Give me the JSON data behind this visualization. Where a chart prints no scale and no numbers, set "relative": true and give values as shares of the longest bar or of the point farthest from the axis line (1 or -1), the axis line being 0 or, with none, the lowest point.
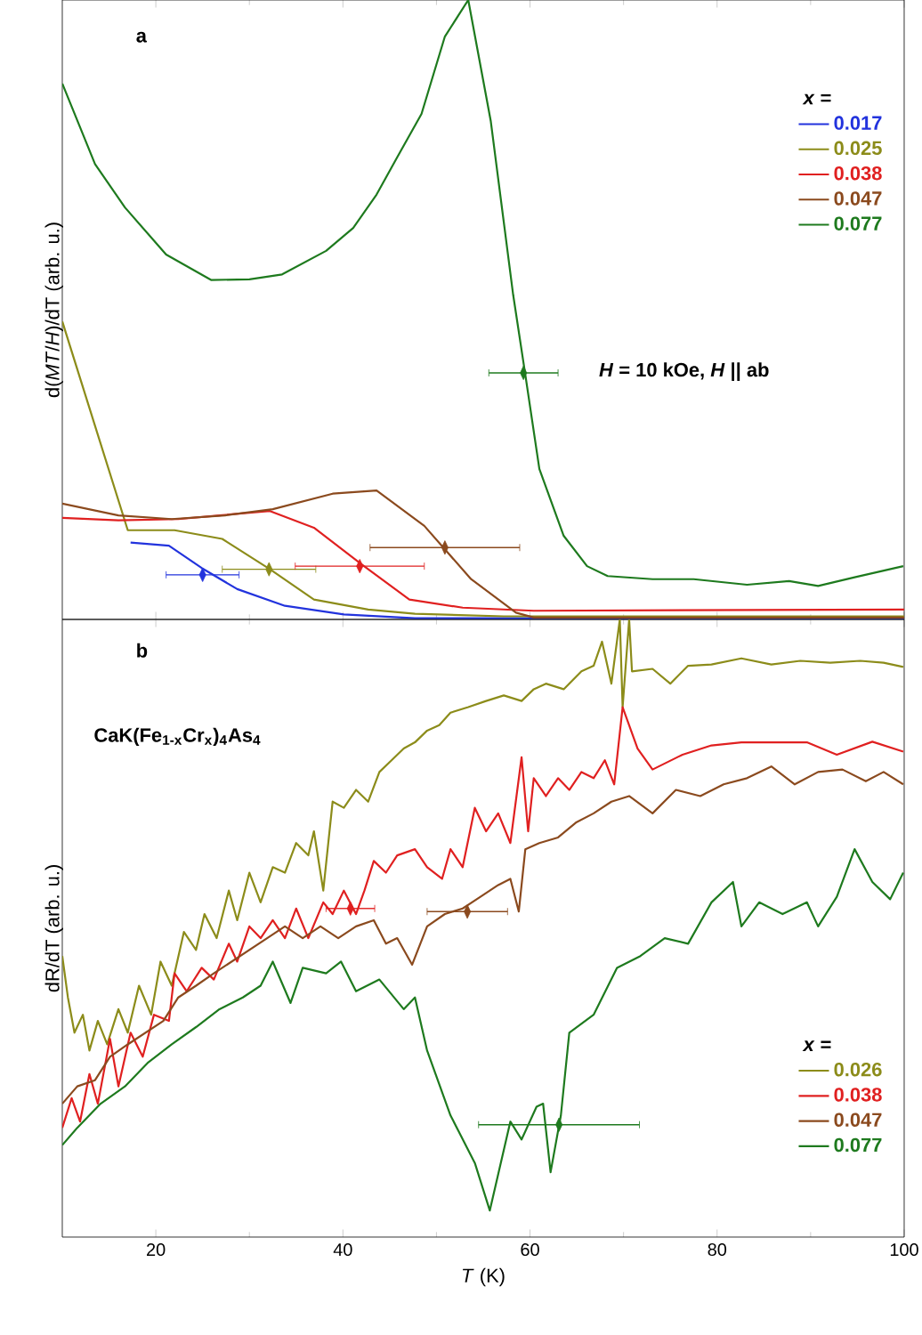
{
  "chart_data": [
    {
      "type": "line",
      "relative": true,
      "ylabel": "d(*MT*/*H*)/dT (arb. u.)",
      "legend_title": "*x* =",
      "legend": "top right",
      "tick_labels": false,
      "xlim": [
        10,
        100
      ],
      "xticks": [
        20,
        40,
        60,
        80,
        100
      ],
      "annotations": [
        "a",
        "*H* = 10 kOe, *H* || ab"
      ],
      "series": [
        {
          "name": "0.017",
          "color": "#2233dd",
          "x": [
            17.3,
            21.4,
            24.9,
            28.7,
            33.8,
            40.1,
            47.7,
            100
          ],
          "values": [
            0.124,
            0.119,
            0.083,
            0.049,
            0.022,
            0.008,
            0.002,
            0.002
          ]
        },
        {
          "name": "0.025",
          "color": "#8c8c1a",
          "x": [
            10,
            17,
            22,
            27.1,
            32.2,
            36.9,
            42.7,
            47.7,
            57.2,
            70.6,
            100
          ],
          "values": [
            0.481,
            0.144,
            0.144,
            0.13,
            0.081,
            0.032,
            0.016,
            0.009,
            0.005,
            0.005,
            0.005
          ]
        },
        {
          "name": "0.038",
          "color": "#e02020",
          "x": [
            10,
            16,
            22.4,
            26.8,
            32.2,
            36.9,
            42,
            47.1,
            52.8,
            60.4,
            100
          ],
          "values": [
            0.164,
            0.16,
            0.162,
            0.168,
            0.175,
            0.148,
            0.089,
            0.032,
            0.019,
            0.014,
            0.016
          ]
        },
        {
          "name": "0.047",
          "color": "#8b4a1e",
          "x": [
            10,
            16,
            21.7,
            27.4,
            32.5,
            38.9,
            43.6,
            48.7,
            53.7,
            58.5,
            60.4,
            100
          ],
          "values": [
            0.187,
            0.168,
            0.162,
            0.168,
            0.178,
            0.203,
            0.208,
            0.151,
            0.065,
            0.011,
            0.003,
            0.003
          ]
        },
        {
          "name": "0.077",
          "color": "#1e7a1e",
          "x": [
            10,
            13.5,
            16.7,
            21.1,
            25.9,
            30,
            33.5,
            38.2,
            41.1,
            43.6,
            45.8,
            48.4,
            50.9,
            53.4,
            55.8,
            58.2,
            59.5,
            61,
            63.6,
            66.1,
            68.3,
            73.1,
            77.5,
            83.2,
            87.7,
            90.8,
            94.7,
            99.9
          ],
          "values": [
            0.865,
            0.735,
            0.665,
            0.589,
            0.548,
            0.549,
            0.557,
            0.595,
            0.632,
            0.686,
            0.746,
            0.816,
            0.941,
            1.0,
            0.805,
            0.524,
            0.395,
            0.243,
            0.135,
            0.086,
            0.07,
            0.065,
            0.065,
            0.056,
            0.062,
            0.054,
            0.068,
            0.086
          ]
        },
        {
          "type": "scatter",
          "marker": "diamond",
          "color": "#2233dd",
          "x": [
            25
          ],
          "values": [
            0.072
          ],
          "xerrors": [
            3.9
          ]
        },
        {
          "type": "scatter",
          "marker": "diamond",
          "color": "#8c8c1a",
          "x": [
            32.1
          ],
          "values": [
            0.081
          ],
          "xerrors": [
            5
          ]
        },
        {
          "type": "scatter",
          "marker": "diamond",
          "color": "#e02020",
          "x": [
            41.8
          ],
          "values": [
            0.086
          ],
          "xerrors": [
            6.9
          ]
        },
        {
          "type": "scatter",
          "marker": "diamond",
          "color": "#8b4a1e",
          "x": [
            50.9
          ],
          "values": [
            0.116
          ],
          "xerrors": [
            8
          ]
        },
        {
          "type": "scatter",
          "marker": "diamond",
          "color": "#1e7a1e",
          "x": [
            59.3
          ],
          "values": [
            0.398
          ],
          "xerrors": [
            3.7
          ]
        }
      ]
    },
    {
      "type": "line",
      "relative": true,
      "ylabel": "dR/dT (arb. u.)",
      "xlabel": "*T* (K)",
      "legend_title": "*x* =",
      "legend": "bottom right",
      "tick_labels": "x",
      "xlim": [
        10,
        100
      ],
      "xticks": [
        20,
        40,
        60,
        80,
        100
      ],
      "annotations": [
        "b",
        "CaK(Fe$_{1-x}$Cr$_{x}$)$_{4}$As$_{4}$"
      ],
      "series": [
        {
          "name": "0.026",
          "color": "#8c8c1a",
          "x": [
            10,
            10.6,
            11.3,
            12.2,
            12.9,
            13.8,
            14.8,
            16,
            17,
            18.2,
            19.5,
            20.5,
            21.7,
            23,
            24.3,
            25.2,
            26.5,
            27.8,
            28.7,
            30,
            31.2,
            32.5,
            33.8,
            35,
            36.3,
            36.9,
            37.9,
            38.9,
            40.1,
            41.4,
            42.7,
            43.9,
            45.2,
            46.5,
            47.7,
            49,
            50.3,
            51.5,
            53.4,
            55.3,
            57.2,
            59.1,
            60.4,
            61.7,
            63.6,
            65.5,
            66.8,
            67.7,
            68.7,
            69.6,
            69.9,
            70.6,
            70.9,
            73.1,
            75,
            76.9,
            79.4,
            82.6,
            85.8,
            88.9,
            92.1,
            95.3,
            97.8,
            99.9
          ],
          "values": [
            0.455,
            0.388,
            0.331,
            0.36,
            0.302,
            0.35,
            0.312,
            0.369,
            0.331,
            0.407,
            0.36,
            0.446,
            0.407,
            0.494,
            0.465,
            0.523,
            0.484,
            0.561,
            0.513,
            0.59,
            0.542,
            0.599,
            0.59,
            0.638,
            0.618,
            0.657,
            0.561,
            0.705,
            0.695,
            0.724,
            0.705,
            0.753,
            0.772,
            0.791,
            0.801,
            0.82,
            0.829,
            0.849,
            0.858,
            0.868,
            0.877,
            0.868,
            0.887,
            0.896,
            0.887,
            0.916,
            0.925,
            0.964,
            0.896,
            1.0,
            0.858,
            1.0,
            0.916,
            0.92,
            0.896,
            0.925,
            0.927,
            0.937,
            0.927,
            0.933,
            0.93,
            0.933,
            0.93,
            0.923
          ]
        },
        {
          "name": "0.038",
          "color": "#e02020",
          "x": [
            10,
            11,
            11.9,
            12.9,
            13.8,
            15.1,
            16,
            17.3,
            18.6,
            19.8,
            21.4,
            22,
            23.3,
            24.9,
            26.2,
            27.8,
            28.7,
            30,
            31.2,
            32.5,
            33.8,
            35,
            36.3,
            37.9,
            38.9,
            40.1,
            41.4,
            42.3,
            43.3,
            44.6,
            45.8,
            47.7,
            49,
            50.6,
            51.5,
            52.8,
            54.1,
            55.3,
            56.6,
            57.9,
            59.1,
            59.8,
            60.4,
            61.7,
            63,
            64.2,
            65.5,
            66.8,
            68,
            69,
            69.9,
            71.5,
            73.1,
            76.3,
            79.4,
            82.6,
            85.8,
            89.6,
            92.8,
            96.6,
            99.9
          ],
          "values": [
            0.177,
            0.225,
            0.187,
            0.264,
            0.216,
            0.321,
            0.244,
            0.331,
            0.292,
            0.36,
            0.35,
            0.427,
            0.398,
            0.436,
            0.417,
            0.475,
            0.446,
            0.503,
            0.484,
            0.513,
            0.484,
            0.532,
            0.484,
            0.542,
            0.523,
            0.561,
            0.523,
            0.561,
            0.609,
            0.59,
            0.618,
            0.628,
            0.599,
            0.58,
            0.628,
            0.599,
            0.695,
            0.657,
            0.686,
            0.638,
            0.777,
            0.657,
            0.743,
            0.714,
            0.743,
            0.724,
            0.753,
            0.743,
            0.772,
            0.733,
            0.858,
            0.791,
            0.757,
            0.781,
            0.796,
            0.801,
            0.801,
            0.801,
            0.781,
            0.802,
            0.786
          ]
        },
        {
          "name": "0.047",
          "color": "#8b4a1e",
          "x": [
            10,
            11.6,
            13.5,
            15.1,
            17,
            18.9,
            20.8,
            22.4,
            24.3,
            26.2,
            28.1,
            30,
            31.9,
            33.8,
            35.7,
            37.6,
            39.5,
            41.4,
            43.3,
            44.6,
            45.8,
            47.4,
            49,
            50.9,
            52.8,
            54.7,
            56.6,
            57.9,
            58.8,
            59.5,
            61,
            63,
            64.9,
            66.8,
            68.7,
            70.6,
            73.1,
            75.6,
            78.2,
            80.7,
            83.2,
            85.8,
            88.3,
            90.8,
            93.4,
            95.9,
            97.8,
            99.9
          ],
          "values": [
            0.216,
            0.244,
            0.254,
            0.292,
            0.312,
            0.331,
            0.35,
            0.388,
            0.407,
            0.427,
            0.446,
            0.465,
            0.484,
            0.503,
            0.484,
            0.503,
            0.484,
            0.503,
            0.513,
            0.475,
            0.484,
            0.441,
            0.503,
            0.523,
            0.532,
            0.551,
            0.57,
            0.58,
            0.527,
            0.628,
            0.638,
            0.647,
            0.671,
            0.686,
            0.705,
            0.714,
            0.686,
            0.724,
            0.714,
            0.733,
            0.743,
            0.762,
            0.733,
            0.753,
            0.757,
            0.738,
            0.753,
            0.733
          ]
        },
        {
          "name": "0.077",
          "color": "#1e7a1e",
          "x": [
            10,
            11.6,
            14.1,
            16.7,
            19.2,
            21.7,
            24.3,
            26.8,
            29.3,
            31.2,
            32.5,
            34.4,
            35.7,
            38.2,
            39.8,
            41.4,
            43.9,
            46.5,
            47.7,
            49,
            51.5,
            54.1,
            55.7,
            57.9,
            59.1,
            60.7,
            61.4,
            62.2,
            63.3,
            64.2,
            66.8,
            69.3,
            71.8,
            74.4,
            76.9,
            79.4,
            81.7,
            82.6,
            84.5,
            87,
            89.6,
            90.8,
            92.8,
            94.7,
            96.6,
            98.5,
            99.9
          ],
          "values": [
            0.149,
            0.177,
            0.216,
            0.244,
            0.283,
            0.312,
            0.34,
            0.369,
            0.388,
            0.407,
            0.446,
            0.379,
            0.436,
            0.427,
            0.446,
            0.398,
            0.417,
            0.369,
            0.388,
            0.302,
            0.197,
            0.12,
            0.043,
            0.187,
            0.158,
            0.211,
            0.216,
            0.105,
            0.197,
            0.331,
            0.36,
            0.436,
            0.455,
            0.484,
            0.475,
            0.542,
            0.575,
            0.503,
            0.542,
            0.523,
            0.542,
            0.503,
            0.551,
            0.628,
            0.575,
            0.547,
            0.59
          ]
        },
        {
          "type": "scatter",
          "marker": "diamond",
          "color": "#e02020",
          "x": [
            40.8
          ],
          "values": [
            0.532
          ],
          "xerrors": [
            2.6
          ]
        },
        {
          "type": "scatter",
          "marker": "diamond",
          "color": "#8b4a1e",
          "x": [
            53.3
          ],
          "values": [
            0.527
          ],
          "xerrors": [
            4.3
          ]
        },
        {
          "type": "scatter",
          "marker": "diamond",
          "color": "#1e7a1e",
          "x": [
            63.1
          ],
          "values": [
            0.182
          ],
          "xerrors": [
            8.6
          ]
        }
      ]
    }
  ]
}
